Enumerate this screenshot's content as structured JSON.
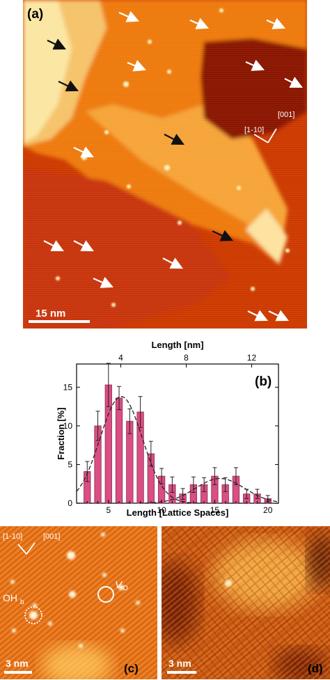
{
  "figure": {
    "panel_a": {
      "label": "(a)",
      "scale_bar": "15 nm",
      "direction_labels": [
        "[1-10]",
        "[001]"
      ]
    },
    "panel_b": {
      "label": "(b)",
      "top_axis_label": "Length [nm]",
      "top_ticks": [
        "4",
        "8",
        "12"
      ],
      "colors": {
        "bar": "#d94e83",
        "bar_edge": "#8a2b4f",
        "fit": "#222222"
      }
    },
    "panel_c": {
      "label": "(c)",
      "scale_bar": "3 nm",
      "direction_labels": [
        "[1-10]",
        "[001]"
      ],
      "annotations": {
        "vacancy": "V",
        "vacancy_sub": "O",
        "hydroxyl": "OH",
        "hydroxyl_sub": "b"
      }
    },
    "panel_d": {
      "label": "(d)",
      "scale_bar": "3 nm"
    }
  },
  "chart_data": {
    "type": "bar",
    "title": "",
    "xlabel": "Length [Lattice Spaces]",
    "ylabel": "Fraction [%]",
    "xlim": [
      2,
      21
    ],
    "ylim": [
      0,
      18
    ],
    "xticks": [
      5,
      10,
      15,
      20
    ],
    "yticks": [
      0,
      5,
      10,
      15
    ],
    "x": [
      3,
      4,
      5,
      6,
      7,
      8,
      9,
      10,
      11,
      12,
      13,
      14,
      15,
      16,
      17,
      18,
      19,
      20
    ],
    "series": [
      {
        "values": [
          4.1,
          10.0,
          15.3,
          13.6,
          10.6,
          11.8,
          6.4,
          3.5,
          2.4,
          1.2,
          2.4,
          2.4,
          3.5,
          2.4,
          3.5,
          1.2,
          1.2,
          0.6
        ],
        "errors": [
          1.3,
          1.9,
          2.8,
          1.5,
          1.6,
          2.0,
          1.6,
          1.0,
          1.0,
          0.7,
          1.0,
          0.9,
          1.1,
          0.9,
          1.1,
          0.6,
          0.6,
          0.4
        ]
      }
    ],
    "fit_curves": [
      {
        "style": "dashed",
        "peak_x": 6.2,
        "peak_y": 13.8,
        "sigma": 2.0
      },
      {
        "style": "dashed",
        "peak_x": 15.5,
        "peak_y": 3.2,
        "sigma": 2.3
      }
    ],
    "top_axis": {
      "label": "Length [nm]",
      "ticks": [
        4,
        8,
        12
      ]
    }
  }
}
